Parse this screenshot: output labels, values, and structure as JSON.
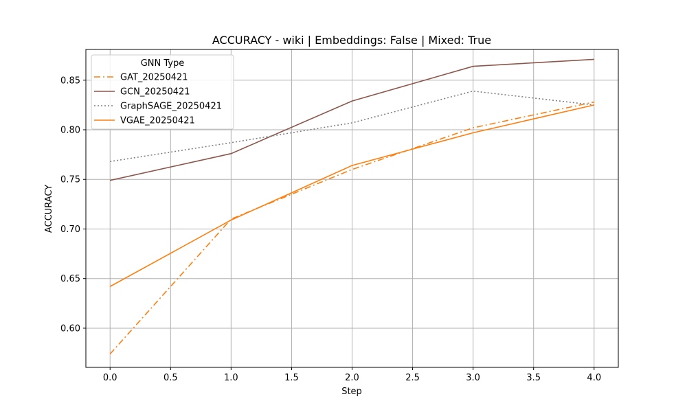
{
  "chart_data": {
    "type": "line",
    "title": "ACCURACY - wiki | Embeddings: False | Mixed: True",
    "xlabel": "Step",
    "ylabel": "ACCURACY",
    "xlim": [
      -0.2,
      4.2
    ],
    "ylim": [
      0.5605,
      0.881
    ],
    "x_ticks": [
      0.0,
      0.5,
      1.0,
      1.5,
      2.0,
      2.5,
      3.0,
      3.5,
      4.0
    ],
    "x_tick_labels": [
      "0.0",
      "0.5",
      "1.0",
      "1.5",
      "2.0",
      "2.5",
      "3.0",
      "3.5",
      "4.0"
    ],
    "y_ticks": [
      0.6,
      0.65,
      0.7,
      0.75,
      0.8,
      0.85
    ],
    "y_tick_labels": [
      "0.60",
      "0.65",
      "0.70",
      "0.75",
      "0.80",
      "0.85"
    ],
    "grid": true,
    "legend": {
      "title": "GNN Type",
      "placement": "top-left"
    },
    "x": [
      0,
      1,
      2,
      3,
      4
    ],
    "series": [
      {
        "name": "GAT_20250421",
        "values": [
          0.574,
          0.71,
          0.76,
          0.802,
          0.828
        ],
        "color": "#ff7f0e",
        "style": "dashdot"
      },
      {
        "name": "GCN_20250421",
        "values": [
          0.749,
          0.776,
          0.829,
          0.864,
          0.871
        ],
        "color": "#8c564b",
        "style": "solid"
      },
      {
        "name": "GraphSAGE_20250421",
        "values": [
          0.768,
          0.787,
          0.807,
          0.839,
          0.825
        ],
        "color": "#7f7f7f",
        "style": "dotted"
      },
      {
        "name": "VGAE_20250421",
        "values": [
          0.642,
          0.709,
          0.764,
          0.797,
          0.825
        ],
        "color": "#ff7f0e",
        "style": "solid"
      }
    ]
  }
}
